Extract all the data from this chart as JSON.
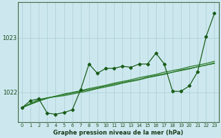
{
  "title": "Graphe pression niveau de la mer (hPa)",
  "bg_color": "#cce8ee",
  "grid_color": "#aaccd4",
  "line_color_main": "#1a5c1a",
  "line_color_smooth": "#2a7a2a",
  "xlim": [
    -0.5,
    23.5
  ],
  "ylim": [
    1021.45,
    1023.65
  ],
  "yticks": [
    1022,
    1023
  ],
  "xticks": [
    0,
    1,
    2,
    3,
    4,
    5,
    6,
    7,
    8,
    9,
    10,
    11,
    12,
    13,
    14,
    15,
    16,
    17,
    18,
    19,
    20,
    21,
    22,
    23
  ],
  "series_raw": [
    1021.72,
    1021.85,
    1021.88,
    1021.62,
    1021.6,
    1021.63,
    1021.68,
    1022.05,
    1022.52,
    1022.35,
    1022.44,
    1022.44,
    1022.48,
    1022.46,
    1022.52,
    1022.52,
    1022.72,
    1022.52,
    1022.02,
    1022.02,
    1022.12,
    1022.38,
    1023.02,
    1023.45
  ],
  "series_smooth1": [
    1021.72,
    1021.8,
    1021.87,
    1021.9,
    1021.92,
    1021.94,
    1021.97,
    1022.0,
    1022.03,
    1022.07,
    1022.1,
    1022.13,
    1022.17,
    1022.2,
    1022.23,
    1022.27,
    1022.3,
    1022.33,
    1022.37,
    1022.4,
    1022.43,
    1022.47,
    1022.5,
    1022.53
  ],
  "series_smooth2": [
    1021.72,
    1021.79,
    1021.85,
    1021.9,
    1021.93,
    1021.96,
    1021.99,
    1022.02,
    1022.05,
    1022.08,
    1022.12,
    1022.15,
    1022.18,
    1022.21,
    1022.24,
    1022.28,
    1022.31,
    1022.34,
    1022.37,
    1022.41,
    1022.44,
    1022.47,
    1022.5,
    1022.54
  ],
  "series_smooth3": [
    1021.72,
    1021.78,
    1021.84,
    1021.89,
    1021.93,
    1021.97,
    1022.0,
    1022.03,
    1022.07,
    1022.1,
    1022.13,
    1022.17,
    1022.2,
    1022.23,
    1022.27,
    1022.3,
    1022.33,
    1022.37,
    1022.4,
    1022.43,
    1022.47,
    1022.5,
    1022.53,
    1022.57
  ]
}
